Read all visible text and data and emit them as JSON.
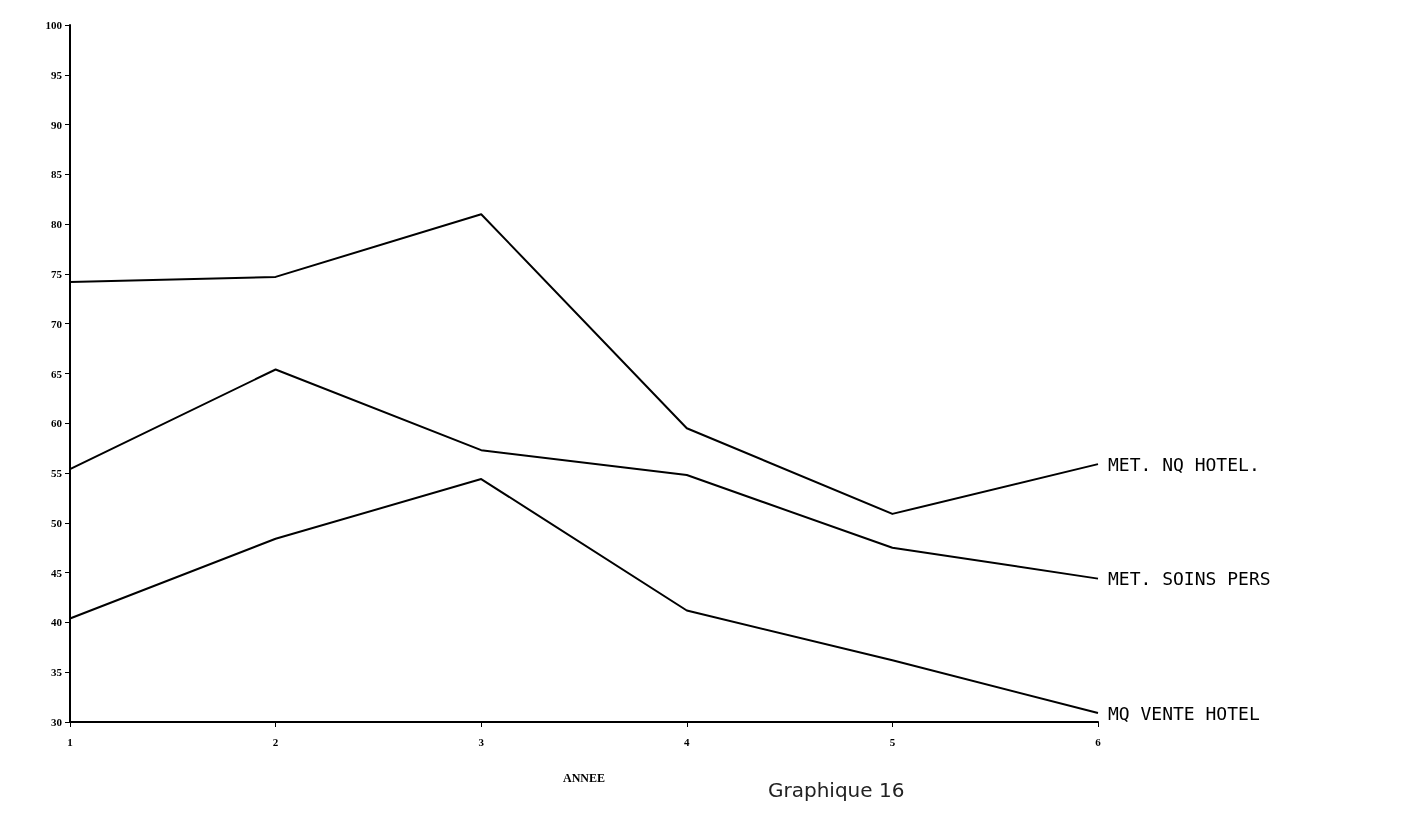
{
  "chart_data": {
    "type": "line",
    "xlabel": "ANNEE",
    "annotations": [
      "Graphique 16"
    ],
    "x": [
      1,
      2,
      3,
      4,
      5,
      6
    ],
    "xlim": [
      1,
      6
    ],
    "xticks": [
      1,
      2,
      3,
      4,
      5,
      6
    ],
    "ylim": [
      30,
      100
    ],
    "yticks": [
      30,
      35,
      40,
      45,
      50,
      55,
      60,
      65,
      70,
      75,
      80,
      85,
      90,
      95,
      100
    ],
    "grid": false,
    "legend": false,
    "marker": "none",
    "line_style": "solid",
    "series": [
      {
        "name": "MET. NQ HOTEL.",
        "color": "#000000",
        "values": [
          74.2,
          74.7,
          81.0,
          59.5,
          50.9,
          55.9
        ]
      },
      {
        "name": "MET. SOINS PERS",
        "color": "#000000",
        "values": [
          55.4,
          65.4,
          57.3,
          54.8,
          47.5,
          44.4
        ]
      },
      {
        "name": "MQ VENTE HOTEL",
        "color": "#000000",
        "values": [
          40.4,
          48.4,
          54.4,
          41.2,
          36.2,
          30.9
        ]
      }
    ]
  }
}
